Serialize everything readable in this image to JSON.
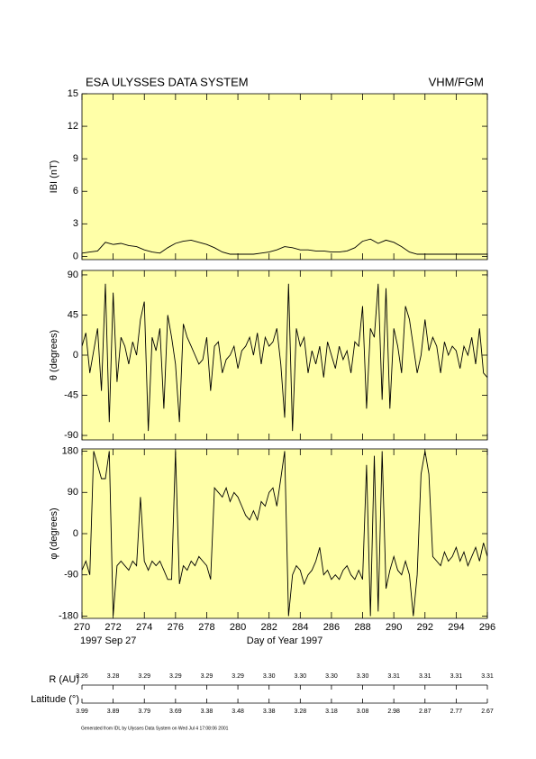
{
  "header": {
    "title": "ESA ULYSSES DATA SYSTEM",
    "instrument": "VHM/FGM"
  },
  "chart_data": [
    {
      "type": "line",
      "ylabel": "IBI (nT)",
      "color": "#000000",
      "background": "#ffffa8",
      "xlim": [
        270,
        296
      ],
      "xticks": [
        270,
        272,
        274,
        276,
        278,
        280,
        282,
        284,
        286,
        288,
        290,
        292,
        294,
        296
      ],
      "ylim": [
        -0.3,
        15
      ],
      "yticks": [
        0,
        3,
        6,
        9,
        12,
        15
      ],
      "x": [
        270,
        270.5,
        271,
        271.5,
        272,
        272.5,
        273,
        273.5,
        274,
        274.5,
        275,
        275.5,
        276,
        276.5,
        277,
        277.5,
        278,
        278.5,
        279,
        279.5,
        280,
        280.5,
        281,
        281.5,
        282,
        282.5,
        283,
        283.5,
        284,
        284.5,
        285,
        285.5,
        286,
        286.5,
        287,
        287.5,
        288,
        288.5,
        289,
        289.5,
        290,
        290.5,
        291,
        291.5,
        292,
        292.5,
        293,
        293.5,
        294,
        294.5,
        295,
        295.5,
        296
      ],
      "values": [
        0.3,
        0.4,
        0.5,
        1.3,
        1.1,
        1.2,
        1.0,
        0.9,
        0.6,
        0.4,
        0.3,
        0.8,
        1.2,
        1.4,
        1.5,
        1.3,
        1.1,
        0.8,
        0.4,
        0.2,
        0.2,
        0.2,
        0.2,
        0.3,
        0.4,
        0.6,
        0.9,
        0.8,
        0.6,
        0.6,
        0.5,
        0.5,
        0.4,
        0.4,
        0.5,
        0.8,
        1.4,
        1.6,
        1.2,
        1.5,
        1.3,
        0.9,
        0.4,
        0.2,
        0.2,
        0.2,
        0.2,
        0.2,
        0.2,
        0.2,
        0.2,
        0.2,
        0.2
      ]
    },
    {
      "type": "line",
      "ylabel": "θ (degrees)",
      "color": "#000000",
      "background": "#ffffa8",
      "xlim": [
        270,
        296
      ],
      "xticks": [
        270,
        272,
        274,
        276,
        278,
        280,
        282,
        284,
        286,
        288,
        290,
        292,
        294,
        296
      ],
      "ylim": [
        -95,
        95
      ],
      "yticks": [
        -90,
        -45,
        0,
        45,
        90
      ],
      "x": [
        270,
        270.25,
        270.5,
        270.75,
        271,
        271.25,
        271.5,
        271.75,
        272,
        272.25,
        272.5,
        272.75,
        273,
        273.25,
        273.5,
        273.75,
        274,
        274.25,
        274.5,
        274.75,
        275,
        275.25,
        275.5,
        275.75,
        276,
        276.25,
        276.5,
        276.75,
        277,
        277.25,
        277.5,
        277.75,
        278,
        278.25,
        278.5,
        278.75,
        279,
        279.25,
        279.5,
        279.75,
        280,
        280.25,
        280.5,
        280.75,
        281,
        281.25,
        281.5,
        281.75,
        282,
        282.25,
        282.5,
        282.75,
        283,
        283.25,
        283.5,
        283.75,
        284,
        284.25,
        284.5,
        284.75,
        285,
        285.25,
        285.5,
        285.75,
        286,
        286.25,
        286.5,
        286.75,
        287,
        287.25,
        287.5,
        287.75,
        288,
        288.25,
        288.5,
        288.75,
        289,
        289.25,
        289.5,
        289.75,
        290,
        290.25,
        290.5,
        290.75,
        291,
        291.25,
        291.5,
        291.75,
        292,
        292.25,
        292.5,
        292.75,
        293,
        293.25,
        293.5,
        293.75,
        294,
        294.25,
        294.5,
        294.75,
        295,
        295.25,
        295.5,
        295.75,
        296
      ],
      "values": [
        10,
        25,
        -20,
        5,
        30,
        -40,
        80,
        -75,
        70,
        -30,
        20,
        10,
        -10,
        15,
        0,
        40,
        60,
        -85,
        20,
        5,
        30,
        -60,
        45,
        20,
        -10,
        -75,
        35,
        20,
        10,
        0,
        -10,
        -5,
        20,
        -40,
        10,
        15,
        -20,
        -5,
        0,
        10,
        -15,
        5,
        10,
        20,
        0,
        25,
        -10,
        20,
        10,
        15,
        30,
        -10,
        -70,
        80,
        -85,
        30,
        10,
        20,
        -20,
        5,
        -10,
        10,
        -25,
        15,
        0,
        -15,
        10,
        -5,
        5,
        -20,
        15,
        10,
        55,
        -60,
        30,
        20,
        80,
        -50,
        75,
        -60,
        30,
        10,
        -20,
        55,
        40,
        10,
        -20,
        0,
        40,
        5,
        20,
        10,
        -20,
        15,
        0,
        10,
        5,
        -15,
        10,
        0,
        20,
        -10,
        30,
        -20,
        -25
      ]
    },
    {
      "type": "line",
      "ylabel": "φ (degrees)",
      "xlabel": "Day of Year 1997",
      "annotation": "1997 Sep 27",
      "color": "#000000",
      "background": "#ffffa8",
      "xlim": [
        270,
        296
      ],
      "xticks": [
        270,
        272,
        274,
        276,
        278,
        280,
        282,
        284,
        286,
        288,
        290,
        292,
        294,
        296
      ],
      "ylim": [
        -185,
        185
      ],
      "yticks": [
        -180,
        -90,
        0,
        90,
        180
      ],
      "x": [
        270,
        270.25,
        270.5,
        270.75,
        271,
        271.25,
        271.5,
        271.75,
        272,
        272.25,
        272.5,
        272.75,
        273,
        273.25,
        273.5,
        273.75,
        274,
        274.25,
        274.5,
        274.75,
        275,
        275.25,
        275.5,
        275.75,
        276,
        276.25,
        276.5,
        276.75,
        277,
        277.25,
        277.5,
        277.75,
        278,
        278.25,
        278.5,
        278.75,
        279,
        279.25,
        279.5,
        279.75,
        280,
        280.25,
        280.5,
        280.75,
        281,
        281.25,
        281.5,
        281.75,
        282,
        282.25,
        282.5,
        282.75,
        283,
        283.25,
        283.5,
        283.75,
        284,
        284.25,
        284.5,
        284.75,
        285,
        285.25,
        285.5,
        285.75,
        286,
        286.25,
        286.5,
        286.75,
        287,
        287.25,
        287.5,
        287.75,
        288,
        288.25,
        288.5,
        288.75,
        289,
        289.25,
        289.5,
        289.75,
        290,
        290.25,
        290.5,
        290.75,
        291,
        291.25,
        291.5,
        291.75,
        292,
        292.25,
        292.5,
        292.75,
        293,
        293.25,
        293.5,
        293.75,
        294,
        294.25,
        294.5,
        294.75,
        295,
        295.25,
        295.5,
        295.75,
        296
      ],
      "values": [
        -80,
        -60,
        -90,
        180,
        150,
        120,
        120,
        180,
        -180,
        -70,
        -60,
        -70,
        -80,
        -60,
        -70,
        80,
        -60,
        -80,
        -60,
        -70,
        -60,
        -80,
        -100,
        -100,
        180,
        -110,
        -70,
        -80,
        -60,
        -70,
        -50,
        -60,
        -70,
        -100,
        100,
        90,
        80,
        100,
        70,
        90,
        80,
        60,
        40,
        30,
        50,
        30,
        70,
        60,
        90,
        100,
        60,
        120,
        180,
        -180,
        -90,
        -70,
        -80,
        -110,
        -90,
        -80,
        -60,
        -30,
        -90,
        -80,
        -100,
        -90,
        -100,
        -80,
        -70,
        -90,
        -100,
        -80,
        -100,
        150,
        -180,
        170,
        -170,
        180,
        -120,
        -80,
        -50,
        -80,
        -90,
        -60,
        -90,
        -180,
        -90,
        130,
        180,
        130,
        -50,
        -60,
        -70,
        -40,
        -60,
        -50,
        -30,
        -60,
        -40,
        -70,
        -50,
        -30,
        -60,
        -20,
        -50
      ]
    }
  ],
  "ephemeris": {
    "r_label": "R (AU)",
    "r_values": [
      "3.26",
      "3.28",
      "3.29",
      "3.29",
      "3.29",
      "3.29",
      "3.30",
      "3.30",
      "3.30",
      "3.30",
      "3.31",
      "3.31",
      "3.31",
      "3.31"
    ],
    "lat_label": "Latitude (°)",
    "lat_values": [
      "3.99",
      "3.89",
      "3.79",
      "3.69",
      "3.38",
      "3.48",
      "3.38",
      "3.28",
      "3.18",
      "3.08",
      "2.98",
      "2.87",
      "2.77",
      "2.67"
    ]
  },
  "footer": "Generated from IDL by Ulysses Data System on Wed Jul  4 17:08:06 2001"
}
